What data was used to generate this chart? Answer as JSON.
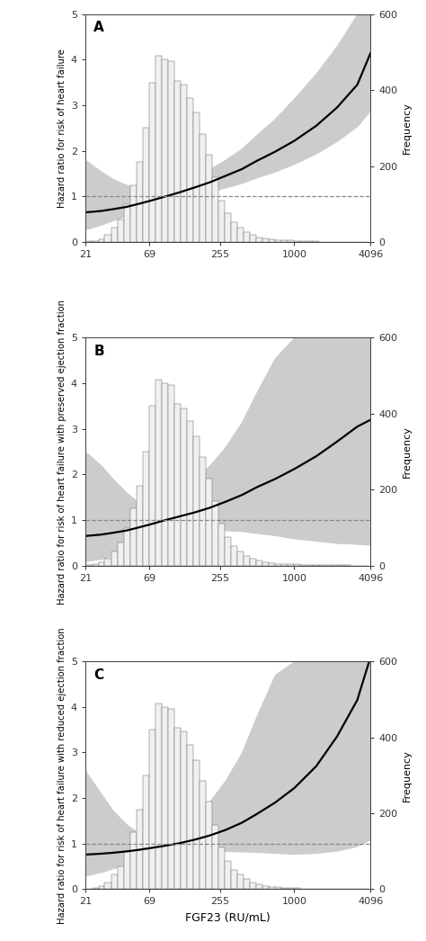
{
  "panels": [
    "A",
    "B",
    "C"
  ],
  "ylabel_A": "Hazard ratio for risk of heart failure",
  "ylabel_B": "Hazard ratio for risk of heart failure with preserved ejection fraction",
  "ylabel_C": "Hazard ratio for risk of heart failure with reduced ejection fraction",
  "xlabel": "FGF23 (RU/mL)",
  "ylabel_right": "Frequency",
  "xtick_vals": [
    21,
    69,
    255,
    1000,
    4096
  ],
  "xtick_labels": [
    "21",
    "69",
    "255",
    "1000",
    "4096"
  ],
  "ylim_left": [
    0,
    5
  ],
  "ylim_right": [
    0,
    600
  ],
  "ytick_left": [
    0,
    1,
    2,
    3,
    4,
    5
  ],
  "ytick_right": [
    0,
    200,
    400,
    600
  ],
  "ref_line_y": 1.0,
  "curve_color": "#000000",
  "ci_color": "#cccccc",
  "hist_color": "#f0f0f0",
  "hist_edge_color": "#666666",
  "background_color": "#ffffff",
  "hist_bins_log": [
    21,
    24,
    27,
    30,
    34,
    38,
    43,
    48,
    54,
    61,
    69,
    77,
    87,
    97,
    109,
    123,
    138,
    155,
    174,
    196,
    220,
    247,
    277,
    311,
    350,
    393,
    441,
    495,
    556,
    624,
    700,
    786,
    882,
    990,
    1112,
    1248,
    1400,
    1572,
    1765,
    1981,
    2224,
    2496,
    2803,
    3147,
    3532,
    3964
  ],
  "hist_heights": [
    2,
    3,
    8,
    18,
    38,
    60,
    100,
    150,
    210,
    300,
    420,
    490,
    480,
    475,
    425,
    415,
    380,
    340,
    285,
    230,
    170,
    110,
    75,
    52,
    38,
    26,
    18,
    13,
    9,
    7,
    5,
    4,
    4,
    3,
    2,
    2,
    2,
    1,
    1,
    1,
    1,
    1,
    0,
    0,
    0,
    0
  ],
  "curve_A": {
    "x_log": [
      21,
      28,
      35,
      45,
      55,
      69,
      90,
      120,
      160,
      210,
      280,
      380,
      500,
      700,
      1000,
      1500,
      2200,
      3200,
      4096
    ],
    "y": [
      0.65,
      0.68,
      0.72,
      0.77,
      0.83,
      0.9,
      0.99,
      1.09,
      1.2,
      1.31,
      1.45,
      1.6,
      1.78,
      1.98,
      2.22,
      2.55,
      2.95,
      3.45,
      4.15
    ],
    "ci_lo": [
      0.28,
      0.38,
      0.48,
      0.58,
      0.67,
      0.76,
      0.85,
      0.94,
      1.02,
      1.1,
      1.2,
      1.3,
      1.42,
      1.55,
      1.72,
      1.95,
      2.22,
      2.55,
      2.9
    ],
    "ci_hi": [
      1.8,
      1.55,
      1.38,
      1.25,
      1.18,
      1.12,
      1.18,
      1.28,
      1.44,
      1.6,
      1.8,
      2.05,
      2.35,
      2.7,
      3.15,
      3.7,
      4.3,
      5.0,
      5.0
    ]
  },
  "curve_B": {
    "x_log": [
      21,
      28,
      35,
      45,
      55,
      69,
      90,
      120,
      160,
      210,
      280,
      380,
      500,
      700,
      1000,
      1500,
      2200,
      3200,
      4096
    ],
    "y": [
      0.65,
      0.68,
      0.72,
      0.77,
      0.83,
      0.9,
      0.99,
      1.08,
      1.17,
      1.27,
      1.4,
      1.55,
      1.72,
      1.9,
      2.12,
      2.4,
      2.72,
      3.05,
      3.2
    ],
    "ci_lo": [
      0.1,
      0.15,
      0.22,
      0.32,
      0.42,
      0.55,
      0.65,
      0.72,
      0.76,
      0.78,
      0.78,
      0.76,
      0.72,
      0.67,
      0.6,
      0.55,
      0.5,
      0.48,
      0.46
    ],
    "ci_hi": [
      2.5,
      2.2,
      1.9,
      1.6,
      1.4,
      1.25,
      1.4,
      1.62,
      1.9,
      2.2,
      2.6,
      3.15,
      3.8,
      4.55,
      5.0,
      5.0,
      5.0,
      5.0,
      5.0
    ]
  },
  "curve_C": {
    "x_log": [
      21,
      28,
      35,
      45,
      55,
      69,
      90,
      120,
      160,
      210,
      280,
      380,
      500,
      700,
      1000,
      1500,
      2200,
      3200,
      4096
    ],
    "y": [
      0.76,
      0.78,
      0.8,
      0.83,
      0.86,
      0.9,
      0.95,
      1.01,
      1.09,
      1.18,
      1.3,
      1.46,
      1.65,
      1.9,
      2.22,
      2.7,
      3.35,
      4.15,
      5.1
    ],
    "ci_lo": [
      0.3,
      0.38,
      0.46,
      0.54,
      0.61,
      0.68,
      0.75,
      0.8,
      0.83,
      0.84,
      0.84,
      0.83,
      0.82,
      0.8,
      0.78,
      0.8,
      0.85,
      0.95,
      1.1
    ],
    "ci_hi": [
      2.6,
      2.1,
      1.72,
      1.42,
      1.25,
      1.14,
      1.22,
      1.38,
      1.62,
      1.93,
      2.38,
      3.0,
      3.8,
      4.7,
      5.0,
      5.0,
      5.0,
      5.0,
      5.0
    ]
  }
}
